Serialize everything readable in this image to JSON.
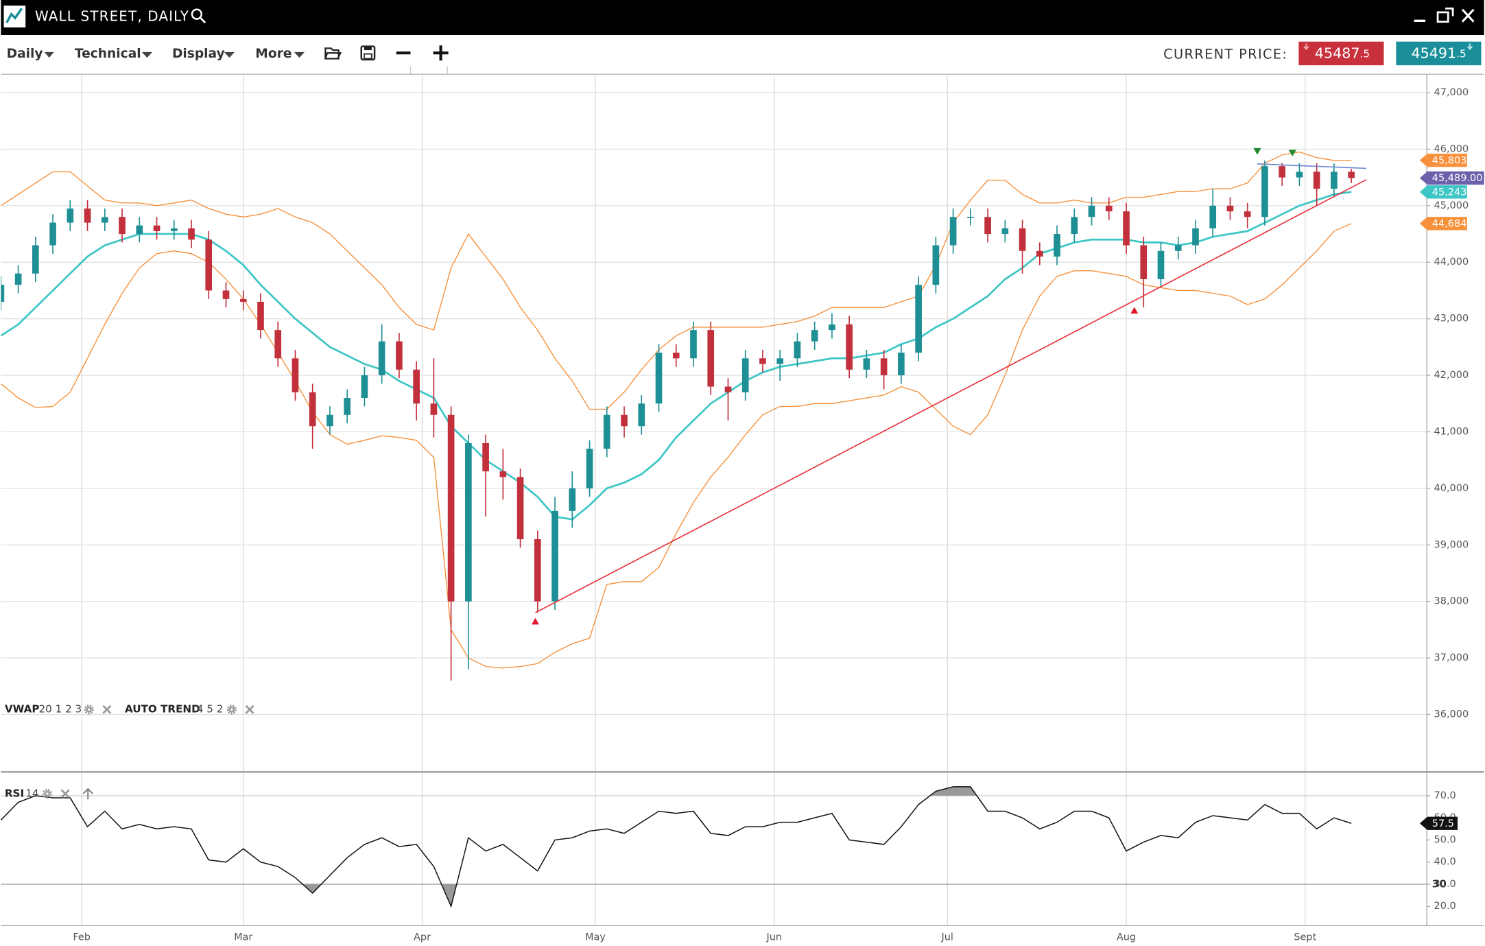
{
  "header": {
    "title": "WALL STREET, DAILY"
  },
  "toolbar": {
    "menus": [
      "Daily",
      "Technical",
      "Display",
      "More"
    ],
    "current_price_label": "CURRENT PRICE:",
    "sell": {
      "price": "45487",
      "fraction": ".5"
    },
    "buy": {
      "price": "45491",
      "fraction": ".5"
    }
  },
  "indicator_labels": [
    {
      "name": "VWAP",
      "params": "20 1 2 3"
    },
    {
      "name": "AUTO TREND",
      "params": "4 5 2"
    }
  ],
  "chart_data": [
    {
      "type": "candlestick",
      "x": [
        18,
        21,
        24,
        27,
        30,
        33,
        36,
        39,
        42,
        45,
        48,
        51,
        54,
        57,
        60,
        63,
        66,
        69,
        72,
        75,
        78,
        81,
        84,
        87,
        90,
        93,
        96,
        99,
        102,
        105,
        108,
        111,
        114,
        117,
        120,
        123,
        126,
        129,
        132,
        135,
        138,
        141,
        144,
        147,
        150,
        153,
        156,
        159,
        162,
        165,
        168,
        171,
        174,
        177,
        180,
        183,
        186,
        189,
        192,
        195,
        198,
        201,
        204,
        207,
        210,
        213,
        216,
        219,
        222,
        225,
        228,
        231,
        234,
        237,
        240,
        243,
        246,
        249,
        252
      ],
      "open": [
        43300,
        43600,
        43800,
        44300,
        44700,
        44950,
        44700,
        44800,
        44500,
        44650,
        44550,
        44600,
        44400,
        43500,
        43350,
        43300,
        42800,
        42300,
        41700,
        41100,
        41300,
        41600,
        42000,
        42600,
        42100,
        41500,
        41300,
        38000,
        40800,
        40300,
        40200,
        39100,
        38000,
        39600,
        40000,
        40700,
        41300,
        41100,
        41500,
        42400,
        42300,
        42800,
        41800,
        41700,
        42300,
        42200,
        42300,
        42600,
        42800,
        42900,
        42100,
        42300,
        42000,
        42400,
        43600,
        44300,
        44800,
        44800,
        44500,
        44600,
        44200,
        44100,
        44500,
        44800,
        45000,
        44900,
        44300,
        43700,
        44200,
        44300,
        44600,
        45000,
        44900,
        44800,
        45700,
        45500,
        45600,
        45300,
        45600
      ],
      "high": [
        43750,
        43950,
        44450,
        44850,
        45100,
        45100,
        44950,
        44950,
        44800,
        44800,
        44750,
        44750,
        44550,
        43650,
        43500,
        43450,
        42950,
        42450,
        41850,
        41450,
        41750,
        42150,
        42900,
        42750,
        42250,
        42300,
        41450,
        40950,
        40950,
        40700,
        40350,
        39250,
        39850,
        40300,
        40850,
        41450,
        41450,
        41650,
        42550,
        42550,
        42950,
        42950,
        41950,
        42450,
        42450,
        42450,
        42750,
        42950,
        43100,
        43050,
        42450,
        42450,
        42550,
        43750,
        44450,
        44950,
        44950,
        44950,
        44750,
        44750,
        44350,
        44650,
        44950,
        45150,
        45150,
        45050,
        44450,
        44350,
        44450,
        44750,
        45300,
        45150,
        45050,
        45800,
        45750,
        45750,
        45750,
        45750,
        45650
      ],
      "low": [
        43150,
        43450,
        43650,
        44150,
        44550,
        44550,
        44550,
        44350,
        44350,
        44400,
        44400,
        44250,
        43350,
        43200,
        43150,
        42650,
        42150,
        41550,
        40700,
        40950,
        41150,
        41450,
        41850,
        41950,
        41200,
        40900,
        36600,
        36800,
        39500,
        39800,
        38950,
        37800,
        37850,
        39300,
        39850,
        40550,
        40900,
        40950,
        41350,
        42150,
        42150,
        41650,
        41200,
        41550,
        42050,
        41900,
        42150,
        42450,
        42650,
        41950,
        41950,
        41750,
        41850,
        42250,
        43450,
        44150,
        44650,
        44350,
        44350,
        43800,
        43950,
        43950,
        44350,
        44650,
        44750,
        44150,
        43200,
        43550,
        44050,
        44150,
        44450,
        44750,
        44600,
        44650,
        45350,
        45350,
        45000,
        45150,
        45400
      ],
      "close": [
        43600,
        43800,
        44300,
        44700,
        44950,
        44700,
        44800,
        44500,
        44650,
        44550,
        44600,
        44400,
        43500,
        43350,
        43300,
        42800,
        42300,
        41700,
        41100,
        41300,
        41600,
        42000,
        42600,
        42100,
        41500,
        41300,
        38000,
        40800,
        40300,
        40200,
        39100,
        38000,
        39600,
        40000,
        40700,
        41300,
        41100,
        41500,
        42400,
        42300,
        42800,
        41800,
        41700,
        42300,
        42200,
        42300,
        42600,
        42800,
        42900,
        42100,
        42300,
        42000,
        42400,
        43600,
        44300,
        44800,
        44800,
        44500,
        44600,
        44200,
        44100,
        44500,
        44800,
        45000,
        44900,
        44300,
        43700,
        44200,
        44300,
        44600,
        45000,
        44900,
        44800,
        45700,
        45500,
        45600,
        45300,
        45600,
        45489
      ],
      "close_label": "45,489.00",
      "close_tag_color": "#6b60aa",
      "up_color": "#1d8f95",
      "down_color": "#c2303c",
      "overlays": [
        {
          "color": "#f7903a",
          "width": 1,
          "last_label": "45,803",
          "values": [
            45000,
            45200,
            45400,
            45600,
            45600,
            45350,
            45100,
            45050,
            45050,
            45000,
            45050,
            45100,
            44950,
            44850,
            44800,
            44850,
            44950,
            44800,
            44700,
            44500,
            44200,
            43900,
            43600,
            43200,
            42900,
            42800,
            43900,
            44500,
            44100,
            43700,
            43200,
            42800,
            42300,
            41900,
            41400,
            41400,
            41700,
            42100,
            42450,
            42700,
            42850,
            42850,
            42850,
            42850,
            42850,
            42900,
            42950,
            43050,
            43200,
            43200,
            43200,
            43200,
            43300,
            43400,
            43950,
            44700,
            45100,
            45450,
            45450,
            45200,
            45050,
            45050,
            45100,
            45050,
            45050,
            45150,
            45150,
            45200,
            45250,
            45250,
            45300,
            45300,
            45400,
            45750,
            45900,
            45950,
            45850,
            45800,
            45803
          ]
        },
        {
          "color": "#3ec6c6",
          "width": 2,
          "last_label": "45,243",
          "values": [
            42700,
            42900,
            43200,
            43500,
            43800,
            44100,
            44300,
            44400,
            44500,
            44500,
            44500,
            44500,
            44400,
            44200,
            43950,
            43600,
            43300,
            43000,
            42750,
            42500,
            42350,
            42200,
            42100,
            41900,
            41750,
            41600,
            41100,
            40800,
            40500,
            40300,
            40100,
            39850,
            39500,
            39450,
            39700,
            40000,
            40100,
            40250,
            40500,
            40900,
            41200,
            41500,
            41700,
            41900,
            42050,
            42150,
            42200,
            42250,
            42300,
            42300,
            42350,
            42400,
            42550,
            42650,
            42850,
            43000,
            43200,
            43400,
            43700,
            43900,
            44150,
            44250,
            44350,
            44400,
            44400,
            44400,
            44350,
            44350,
            44300,
            44350,
            44450,
            44500,
            44550,
            44700,
            44850,
            45000,
            45100,
            45200,
            45243
          ]
        },
        {
          "color": "#f7903a",
          "width": 1,
          "last_label": "44,684",
          "values": [
            41850,
            41600,
            41430,
            41450,
            41700,
            42300,
            42900,
            43450,
            43900,
            44150,
            44200,
            44150,
            44000,
            43700,
            43350,
            42900,
            42400,
            41900,
            41350,
            40950,
            40780,
            40850,
            40930,
            40900,
            40850,
            40550,
            37500,
            37000,
            36850,
            36820,
            36850,
            36900,
            37100,
            37250,
            37350,
            38300,
            38350,
            38350,
            38600,
            39200,
            39750,
            40200,
            40550,
            40950,
            41300,
            41450,
            41450,
            41500,
            41500,
            41550,
            41600,
            41650,
            41800,
            41700,
            41400,
            41100,
            40950,
            41300,
            42000,
            42800,
            43400,
            43750,
            43850,
            43850,
            43800,
            43750,
            43600,
            43550,
            43500,
            43500,
            43450,
            43400,
            43250,
            43350,
            43600,
            43900,
            44200,
            44550,
            44684
          ]
        }
      ],
      "lines": [
        {
          "x": [
            110.6,
            254.6
          ],
          "y": [
            37800,
            45460
          ],
          "color": "#e8323c"
        },
        {
          "x": [
            235.7,
            254.6
          ],
          "y": [
            45740,
            45660
          ],
          "color": "#6a86cf"
        }
      ],
      "markers": [
        {
          "x": 110.6,
          "y": 37650,
          "direction": "up",
          "color": "#e0192c"
        },
        {
          "x": 214.4,
          "y": 43150,
          "direction": "up",
          "color": "#e0192c"
        },
        {
          "x": 235.7,
          "y": 45960,
          "direction": "down",
          "color": "#1e8a2e"
        },
        {
          "x": 241.8,
          "y": 45930,
          "direction": "down",
          "color": "#1e8a2e"
        }
      ],
      "xlim": [
        18,
        265
      ],
      "xticks": [
        32,
        60,
        91,
        121,
        152,
        182,
        213,
        244
      ],
      "ylim": [
        35000,
        47300
      ],
      "yticks": [
        {
          "value": 36000,
          "label": "36,000"
        },
        {
          "value": 37000,
          "label": "37,000"
        },
        {
          "value": 38000,
          "label": "38,000"
        },
        {
          "value": 39000,
          "label": "39,000"
        },
        {
          "value": 40000,
          "label": "40,000"
        },
        {
          "value": 41000,
          "label": "41,000"
        },
        {
          "value": 42000,
          "label": "42,000"
        },
        {
          "value": 43000,
          "label": "43,000"
        },
        {
          "value": 44000,
          "label": "44,000"
        },
        {
          "value": 45000,
          "label": "45,000"
        },
        {
          "value": 46000,
          "label": "46,000"
        },
        {
          "value": 47000,
          "label": "47,000"
        }
      ],
      "grid": true
    },
    {
      "type": "line",
      "title": "RSI",
      "subtitle": "14",
      "color": "#111111",
      "shade_color": "#9a9a9a",
      "x": [
        18,
        21,
        24,
        27,
        30,
        33,
        36,
        39,
        42,
        45,
        48,
        51,
        54,
        57,
        60,
        63,
        66,
        69,
        72,
        75,
        78,
        81,
        84,
        87,
        90,
        93,
        96,
        99,
        102,
        105,
        108,
        111,
        114,
        117,
        120,
        123,
        126,
        129,
        132,
        135,
        138,
        141,
        144,
        147,
        150,
        153,
        156,
        159,
        162,
        165,
        168,
        171,
        174,
        177,
        180,
        183,
        186,
        189,
        192,
        195,
        198,
        201,
        204,
        207,
        210,
        213,
        216,
        219,
        222,
        225,
        228,
        231,
        234,
        237,
        240,
        243,
        246,
        249,
        252
      ],
      "values": [
        59,
        67,
        70,
        69,
        69,
        56,
        63,
        55,
        57,
        55,
        56,
        55,
        41,
        40,
        46,
        40,
        38,
        33,
        26,
        34,
        42,
        48,
        51,
        47,
        48,
        38,
        20,
        51,
        45,
        48,
        42,
        36,
        50,
        51,
        54,
        55,
        53,
        58,
        63,
        62,
        63,
        53,
        52,
        56,
        56,
        58,
        58,
        60,
        62,
        50,
        49,
        48,
        56,
        66,
        72,
        74,
        74,
        63,
        63,
        60,
        55,
        58,
        63,
        63,
        60,
        45,
        49,
        52,
        51,
        58,
        61,
        60,
        59,
        66,
        62,
        62,
        55,
        60,
        57.5
      ],
      "last_label": "57.5",
      "overbought": 70,
      "oversold": {
        "value": 30,
        "label": "30"
      },
      "xlim": [
        18,
        265
      ],
      "xticks": [
        {
          "value": 32,
          "label": "Feb"
        },
        {
          "value": 60,
          "label": "Mar"
        },
        {
          "value": 91,
          "label": "Apr"
        },
        {
          "value": 121,
          "label": "May"
        },
        {
          "value": 152,
          "label": "Jun"
        },
        {
          "value": 182,
          "label": "Jul"
        },
        {
          "value": 213,
          "label": "Aug"
        },
        {
          "value": 244,
          "label": "Sept"
        }
      ],
      "ylim": [
        11.5,
        80.3
      ],
      "yticks": [
        {
          "value": 20,
          "label": "20.0"
        },
        {
          "value": 30,
          "label": "30.0"
        },
        {
          "value": 40,
          "label": "40.0"
        },
        {
          "value": 50,
          "label": "50.0"
        },
        {
          "value": 60,
          "label": "60.0"
        },
        {
          "value": 70,
          "label": "70.0"
        }
      ],
      "grid": true
    }
  ]
}
